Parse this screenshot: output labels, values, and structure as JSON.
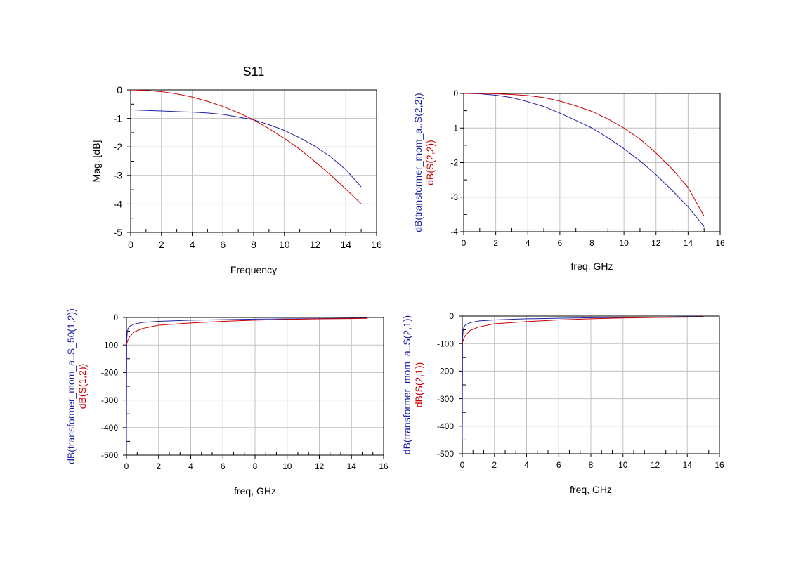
{
  "colors": {
    "series_blue": "#1f1fa8",
    "series_red": "#cc0000",
    "grid": "#c0c0c0",
    "axis": "#000000"
  },
  "chart_data": [
    {
      "id": "s11",
      "type": "line",
      "title": "S11",
      "xlabel": "Frequency",
      "ylabel": "Mag. [dB]",
      "xlim": [
        0,
        16
      ],
      "ylim": [
        -5,
        0
      ],
      "xticks": [
        "0",
        "2",
        "4",
        "6",
        "8",
        "10",
        "12",
        "14",
        "16"
      ],
      "yticks": [
        "0",
        "-1",
        "-2",
        "-3",
        "-4",
        "-5"
      ],
      "grid": true,
      "series": [
        {
          "color": "blue",
          "x": [
            0,
            1,
            2,
            3,
            4,
            5,
            6,
            7,
            8,
            9,
            10,
            11,
            12,
            13,
            14,
            15
          ],
          "y": [
            -0.7,
            -0.72,
            -0.74,
            -0.76,
            -0.78,
            -0.81,
            -0.86,
            -0.95,
            -1.05,
            -1.22,
            -1.42,
            -1.68,
            -1.98,
            -2.34,
            -2.8,
            -3.4
          ]
        },
        {
          "color": "red",
          "x": [
            0,
            1,
            2,
            3,
            4,
            5,
            6,
            7,
            8,
            9,
            10,
            11,
            12,
            13,
            14,
            15
          ],
          "y": [
            0.0,
            -0.02,
            -0.06,
            -0.14,
            -0.25,
            -0.4,
            -0.58,
            -0.8,
            -1.05,
            -1.36,
            -1.7,
            -2.08,
            -2.52,
            -2.98,
            -3.48,
            -4.0
          ]
        }
      ]
    },
    {
      "id": "s22",
      "type": "line",
      "title": "",
      "xlabel": "freq, GHz",
      "ylabel_lines": [
        {
          "text": "dB(transformer_mom_a..S(2,2))",
          "color": "blue"
        },
        {
          "text": "dB(S(2,2))",
          "color": "red"
        }
      ],
      "xlim": [
        0,
        16
      ],
      "ylim": [
        -4,
        0
      ],
      "xticks": [
        "0",
        "2",
        "4",
        "6",
        "8",
        "10",
        "12",
        "14",
        "16"
      ],
      "yticks": [
        "0",
        "-1",
        "-2",
        "-3",
        "-4"
      ],
      "grid": true,
      "series": [
        {
          "color": "blue",
          "x": [
            0,
            1,
            2,
            3,
            4,
            5,
            6,
            7,
            8,
            9,
            10,
            11,
            12,
            13,
            14,
            15
          ],
          "y": [
            0.0,
            -0.01,
            -0.05,
            -0.12,
            -0.24,
            -0.38,
            -0.57,
            -0.78,
            -1.0,
            -1.28,
            -1.6,
            -1.95,
            -2.35,
            -2.8,
            -3.28,
            -3.85
          ]
        },
        {
          "color": "red",
          "x": [
            0,
            1,
            2,
            3,
            4,
            5,
            6,
            7,
            8,
            9,
            10,
            11,
            12,
            13,
            14,
            15
          ],
          "y": [
            0.0,
            0.0,
            -0.01,
            -0.03,
            -0.06,
            -0.12,
            -0.22,
            -0.36,
            -0.52,
            -0.74,
            -1.0,
            -1.32,
            -1.72,
            -2.18,
            -2.72,
            -3.55
          ]
        }
      ]
    },
    {
      "id": "s12",
      "type": "line",
      "title": "",
      "xlabel": "freq, GHz",
      "ylabel_lines": [
        {
          "text": "dB(transformer_mom_a..S_50(1,2))",
          "color": "blue"
        },
        {
          "text": "dB(S(1,2))",
          "color": "red"
        }
      ],
      "xlim": [
        0,
        16
      ],
      "ylim": [
        -500,
        0
      ],
      "xticks": [
        "0",
        "2",
        "4",
        "6",
        "8",
        "10",
        "12",
        "14",
        "16"
      ],
      "yticks": [
        "0",
        "-100",
        "-200",
        "-300",
        "-400",
        "-500"
      ],
      "grid": true,
      "series": [
        {
          "color": "blue",
          "x": [
            0.001,
            0.02,
            0.05,
            0.1,
            0.2,
            0.5,
            1,
            2,
            4,
            6,
            8,
            10,
            12,
            14,
            15
          ],
          "y": [
            -460,
            -80,
            -55,
            -40,
            -32,
            -24,
            -18,
            -14,
            -10,
            -8,
            -6,
            -5,
            -4,
            -3,
            -3
          ]
        },
        {
          "color": "red",
          "x": [
            0.001,
            0.02,
            0.05,
            0.1,
            0.2,
            0.5,
            1,
            2,
            4,
            6,
            8,
            10,
            12,
            14,
            15
          ],
          "y": [
            -100,
            -95,
            -90,
            -80,
            -70,
            -52,
            -40,
            -28,
            -20,
            -14,
            -10,
            -7,
            -5,
            -4,
            -3
          ]
        }
      ]
    },
    {
      "id": "s21",
      "type": "line",
      "title": "",
      "xlabel": "freq, GHz",
      "ylabel_lines": [
        {
          "text": "dB(transformer_mom_a..S(2,1))",
          "color": "blue"
        },
        {
          "text": "dB(S(2,1))",
          "color": "red"
        }
      ],
      "xlim": [
        0,
        16
      ],
      "ylim": [
        -500,
        0
      ],
      "xticks": [
        "0",
        "2",
        "4",
        "6",
        "8",
        "10",
        "12",
        "14",
        "16"
      ],
      "yticks": [
        "0",
        "-100",
        "-200",
        "-300",
        "-400",
        "-500"
      ],
      "grid": true,
      "series": [
        {
          "color": "blue",
          "x": [
            0.001,
            0.02,
            0.05,
            0.1,
            0.2,
            0.5,
            1,
            2,
            4,
            6,
            8,
            10,
            12,
            14,
            15
          ],
          "y": [
            -450,
            -80,
            -55,
            -40,
            -32,
            -24,
            -18,
            -14,
            -10,
            -8,
            -6,
            -5,
            -4,
            -3,
            -3
          ]
        },
        {
          "color": "red",
          "x": [
            0.001,
            0.02,
            0.05,
            0.1,
            0.2,
            0.5,
            1,
            2,
            4,
            6,
            8,
            10,
            12,
            14,
            15
          ],
          "y": [
            -100,
            -95,
            -90,
            -80,
            -70,
            -52,
            -40,
            -28,
            -20,
            -14,
            -10,
            -7,
            -5,
            -4,
            -3
          ]
        }
      ]
    }
  ]
}
